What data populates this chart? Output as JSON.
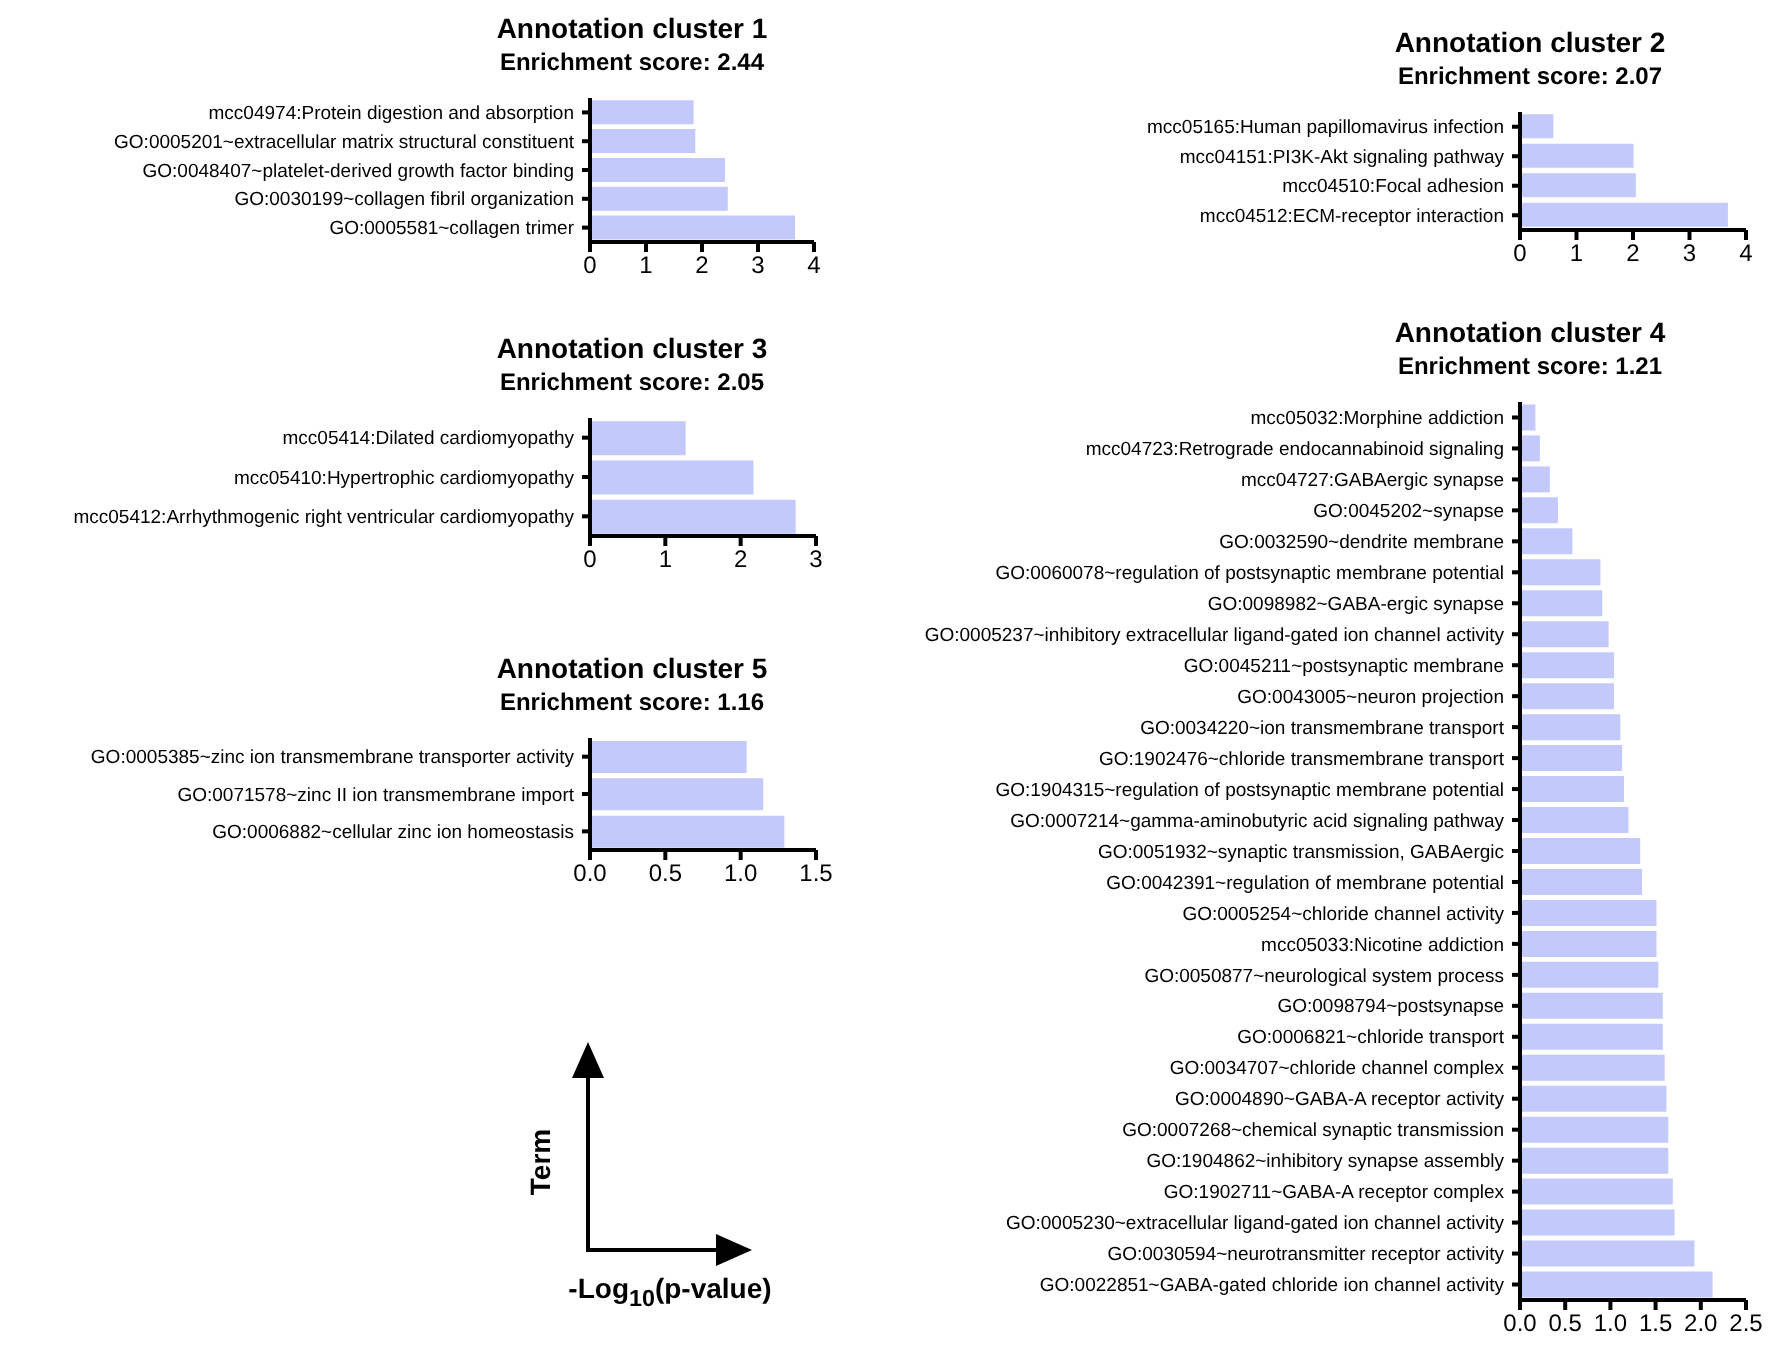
{
  "chart_data": [
    {
      "type": "bar",
      "orientation": "horizontal",
      "title": "Annotation cluster 1",
      "subtitle": "Enrichment score: 2.44",
      "color": "#c3c9fa",
      "categories": [
        "mcc04974:Protein digestion and absorption",
        "GO:0005201~extracellular matrix structural constituent",
        "GO:0048407~platelet-derived growth factor binding",
        "GO:0030199~collagen fibril organization",
        "GO:0005581~collagen trimer"
      ],
      "values": [
        1.85,
        1.88,
        2.41,
        2.46,
        3.66
      ],
      "xlim": [
        0,
        4
      ],
      "xticks": [
        0,
        1,
        2,
        3,
        4
      ]
    },
    {
      "type": "bar",
      "orientation": "horizontal",
      "title": "Annotation cluster 2",
      "subtitle": "Enrichment score: 2.07",
      "color": "#c3c9fa",
      "categories": [
        "mcc05165:Human papillomavirus infection",
        "mcc04151:PI3K-Akt signaling pathway",
        "mcc04510:Focal adhesion",
        "mcc04512:ECM-receptor interaction"
      ],
      "values": [
        0.59,
        2.01,
        2.05,
        3.68
      ],
      "xlim": [
        0,
        4
      ],
      "xticks": [
        0,
        1,
        2,
        3,
        4
      ]
    },
    {
      "type": "bar",
      "orientation": "horizontal",
      "title": "Annotation cluster 3",
      "subtitle": "Enrichment score: 2.05",
      "color": "#c3c9fa",
      "categories": [
        "mcc05414:Dilated cardiomyopathy",
        "mcc05410:Hypertrophic cardiomyopathy",
        "mcc05412:Arrhythmogenic right ventricular cardiomyopathy"
      ],
      "values": [
        1.27,
        2.17,
        2.73
      ],
      "xlim": [
        0,
        3
      ],
      "xticks": [
        0,
        1,
        2,
        3
      ]
    },
    {
      "type": "bar",
      "orientation": "horizontal",
      "title": "Annotation cluster 4",
      "subtitle": "Enrichment score: 1.21",
      "color": "#c3c9fa",
      "categories": [
        "mcc05032:Morphine addiction",
        "mcc04723:Retrograde endocannabinoid signaling",
        "mcc04727:GABAergic synapse",
        "GO:0045202~synapse",
        "GO:0032590~dendrite membrane",
        "GO:0060078~regulation of postsynaptic membrane potential",
        "GO:0098982~GABA-ergic synapse",
        "GO:0005237~inhibitory extracellular ligand-gated ion channel activity",
        "GO:0045211~postsynaptic membrane",
        "GO:0043005~neuron projection",
        "GO:0034220~ion transmembrane transport",
        "GO:1902476~chloride transmembrane transport",
        "GO:1904315~regulation of postsynaptic membrane potential",
        "GO:0007214~gamma-aminobutyric acid signaling pathway",
        "GO:0051932~synaptic transmission, GABAergic",
        "GO:0042391~regulation of membrane potential",
        "GO:0005254~chloride channel activity",
        "mcc05033:Nicotine addiction",
        "GO:0050877~neurological system process",
        "GO:0098794~postsynapse",
        "GO:0006821~chloride transport",
        "GO:0034707~chloride channel complex",
        "GO:0004890~GABA-A receptor activity",
        "GO:0007268~chemical synaptic transmission",
        "GO:1904862~inhibitory synapse assembly",
        "GO:1902711~GABA-A receptor complex",
        "GO:0005230~extracellular ligand-gated ion channel activity",
        "GO:0030594~neurotransmitter receptor activity",
        "GO:0022851~GABA-gated chloride ion channel activity"
      ],
      "values": [
        0.17,
        0.22,
        0.33,
        0.42,
        0.58,
        0.89,
        0.91,
        0.98,
        1.04,
        1.04,
        1.11,
        1.13,
        1.15,
        1.2,
        1.33,
        1.35,
        1.51,
        1.51,
        1.53,
        1.58,
        1.58,
        1.6,
        1.62,
        1.64,
        1.64,
        1.69,
        1.71,
        1.93,
        2.13
      ],
      "xlim": [
        0,
        2.5
      ],
      "xticks": [
        {
          "value": 0,
          "label": "0.0"
        },
        {
          "value": 0.5,
          "label": "0.5"
        },
        {
          "value": 1,
          "label": "1.0"
        },
        {
          "value": 1.5,
          "label": "1.5"
        },
        {
          "value": 2,
          "label": "2.0"
        },
        {
          "value": 2.5,
          "label": "2.5"
        }
      ]
    },
    {
      "type": "bar",
      "orientation": "horizontal",
      "title": "Annotation cluster 5",
      "subtitle": "Enrichment score: 1.16",
      "color": "#c3c9fa",
      "categories": [
        "GO:0005385~zinc ion transmembrane transporter activity",
        "GO:0071578~zinc II ion transmembrane import",
        "GO:0006882~cellular zinc ion homeostasis"
      ],
      "values": [
        1.04,
        1.15,
        1.29
      ],
      "xlim": [
        0,
        1.5
      ],
      "xticks": [
        {
          "value": 0,
          "label": "0.0"
        },
        {
          "value": 0.5,
          "label": "0.5"
        },
        {
          "value": 1,
          "label": "1.0"
        },
        {
          "value": 1.5,
          "label": "1.5"
        }
      ]
    },
    {
      "type": "other",
      "xlabel": "-Log$_{10}$(p-value)",
      "ylabel": "Term"
    }
  ]
}
